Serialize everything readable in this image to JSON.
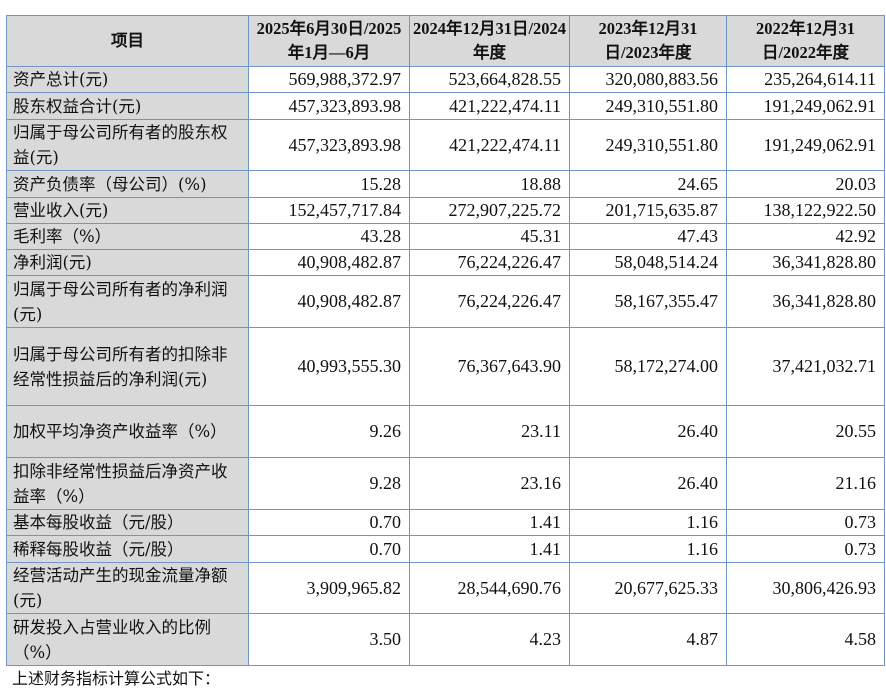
{
  "table": {
    "headers": [
      "项目",
      "2025年6月30日/2025年1月—6月",
      "2024年12月31日/2024年度",
      "2023年12月31日/2023年度",
      "2022年12月31日/2022年度"
    ],
    "rows": [
      {
        "label": "资产总计(元)",
        "values": [
          "569,988,372.97",
          "523,664,828.55",
          "320,080,883.56",
          "235,264,614.11"
        ]
      },
      {
        "label": "股东权益合计(元)",
        "values": [
          "457,323,893.98",
          "421,222,474.11",
          "249,310,551.80",
          "191,249,062.91"
        ]
      },
      {
        "label": "归属于母公司所有者的股东权益(元)",
        "values": [
          "457,323,893.98",
          "421,222,474.11",
          "249,310,551.80",
          "191,249,062.91"
        ]
      },
      {
        "label": "资产负债率（母公司）(%)",
        "values": [
          "15.28",
          "18.88",
          "24.65",
          "20.03"
        ]
      },
      {
        "label": "营业收入(元)",
        "values": [
          "152,457,717.84",
          "272,907,225.72",
          "201,715,635.87",
          "138,122,922.50"
        ]
      },
      {
        "label": "毛利率（%）",
        "values": [
          "43.28",
          "45.31",
          "47.43",
          "42.92"
        ]
      },
      {
        "label": "净利润(元)",
        "values": [
          "40,908,482.87",
          "76,224,226.47",
          "58,048,514.24",
          "36,341,828.80"
        ]
      },
      {
        "label": "归属于母公司所有者的净利润(元)",
        "values": [
          "40,908,482.87",
          "76,224,226.47",
          "58,167,355.47",
          "36,341,828.80"
        ]
      },
      {
        "label": "归属于母公司所有者的扣除非经常性损益后的净利润(元)",
        "values": [
          "40,993,555.30",
          "76,367,643.90",
          "58,172,274.00",
          "37,421,032.71"
        ]
      },
      {
        "label": "加权平均净资产收益率（%）",
        "values": [
          "9.26",
          "23.11",
          "26.40",
          "20.55"
        ]
      },
      {
        "label": "扣除非经常性损益后净资产收益率（%）",
        "values": [
          "9.28",
          "23.16",
          "26.40",
          "21.16"
        ]
      },
      {
        "label": "基本每股收益（元/股）",
        "values": [
          "0.70",
          "1.41",
          "1.16",
          "0.73"
        ]
      },
      {
        "label": "稀释每股收益（元/股）",
        "values": [
          "0.70",
          "1.41",
          "1.16",
          "0.73"
        ]
      },
      {
        "label": "经营活动产生的现金流量净额(元)",
        "values": [
          "3,909,965.82",
          "28,544,690.76",
          "20,677,625.33",
          "30,806,426.93"
        ]
      },
      {
        "label": "研发投入占营业收入的比例（%）",
        "values": [
          "3.50",
          "4.23",
          "4.87",
          "4.58"
        ]
      }
    ]
  },
  "footnote": "上述财务指标计算公式如下："
}
